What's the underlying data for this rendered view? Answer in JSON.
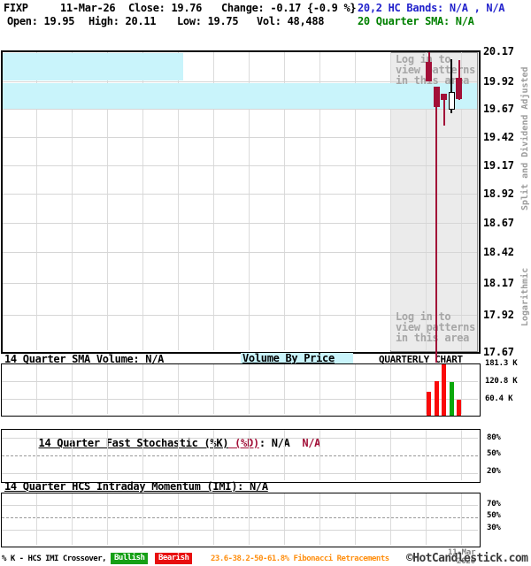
{
  "header": {
    "symbol": "FIXP",
    "date": "11-Mar-26",
    "close": "Close: 19.76",
    "change": "Change: -0.17 {-0.9 %}",
    "hc_bands": "20,2 HC Bands: N/A , N/A",
    "open": "Open: 19.95",
    "high": "High: 20.11",
    "low": "Low: 19.75",
    "volume": "Vol: 48,488",
    "sma": "20 Quarter SMA: N/A"
  },
  "main_chart": {
    "price_labels": [
      "20.17",
      "19.92",
      "19.67",
      "19.42",
      "19.17",
      "18.92",
      "18.67",
      "18.42",
      "18.17",
      "17.92",
      "17.67"
    ],
    "right_label_top": "Split and Dividend Adjusted",
    "right_label_bottom": "Logarithmic",
    "login_lines": [
      "Log in to",
      "view patterns",
      "in this area"
    ]
  },
  "volume_section": {
    "sma_volume_label": "14 Quarter SMA Volume: N/A",
    "volume_by_price_label": "Volume By Price",
    "chart_type_label": "QUARTERLY CHART",
    "axis_labels": [
      "181.3 K",
      "120.8 K",
      "60.4 K"
    ]
  },
  "stochastic_section": {
    "title_k": "14 Quarter Fast Stochastic (%K)",
    "title_d": " (%D)",
    "title_colon": ": ",
    "value_k": "N/A",
    "value_d": "  N/A",
    "axis_labels": [
      "80%",
      "50%",
      "20%"
    ]
  },
  "imi_section": {
    "title": "14 Quarter HCS Intraday Momentum (IMI): N/A",
    "axis_labels": [
      "70%",
      "50%",
      "30%"
    ]
  },
  "footer": {
    "date_line1": "11-Mar",
    "date_line2": "2026",
    "crossover_label": "% K - HCS IMI Crossover,",
    "bullish_label": "Bullish",
    "bearish_label": "Bearish",
    "fibonacci_label": "23.6-38.2-50-61.8% Fibonacci Retracements",
    "copyright": "©HotCandlestick.com"
  },
  "colors": {
    "candle_down": "#A21038",
    "candle_up_outline": "#000000",
    "volume_up": "#0BA80B",
    "volume_down": "#FA0A0A",
    "band_fill": "#C9F4FB",
    "bands_text": "#2222CC",
    "sma_text": "#008000",
    "bullish_bg": "#16A016",
    "bearish_bg": "#E80E0E",
    "fibonacci_text": "#FF8E0E"
  },
  "chart_data": {
    "type": "candlestick",
    "symbol": "FIXP",
    "timeframe": "quarterly",
    "y_axis": {
      "min": 17.67,
      "max": 20.17,
      "scale": "logarithmic",
      "labels": [
        20.17,
        19.92,
        19.67,
        19.42,
        19.17,
        18.92,
        18.67,
        18.42,
        18.17,
        17.92,
        17.67
      ]
    },
    "bands_region": {
      "upper_band_price_top": 20.17,
      "upper_band_price_bottom": 19.92,
      "full_band_price_top": 19.9,
      "full_band_price_bottom": 19.67
    },
    "candles": [
      {
        "open": 20.1,
        "high": 20.19,
        "low": 19.92,
        "close": 19.92
      },
      {
        "open": 19.87,
        "high": 19.87,
        "low": 17.6,
        "close": 19.69,
        "low_clipped": true
      },
      {
        "open": 19.81,
        "high": 19.81,
        "low": 19.52,
        "close": 19.75
      },
      {
        "open": 19.66,
        "high": 20.12,
        "low": 19.63,
        "close": 19.82
      },
      {
        "open": 19.95,
        "high": 20.11,
        "low": 19.75,
        "close": 19.76
      }
    ],
    "volume": {
      "axis_max_k": 181.3,
      "gridlines_k": [
        120.8,
        60.4
      ],
      "bars_k": [
        {
          "value_k": 85,
          "direction": "down"
        },
        {
          "value_k": 122,
          "direction": "down"
        },
        {
          "value_k": 184,
          "direction": "down"
        },
        {
          "value_k": 119,
          "direction": "up"
        },
        {
          "value_k": 56,
          "direction": "down"
        }
      ]
    },
    "stochastic": {
      "axis_labels_pct": [
        80,
        50,
        20
      ],
      "values": null
    },
    "imi": {
      "axis_labels_pct": [
        70,
        50,
        30
      ],
      "values": null
    }
  }
}
